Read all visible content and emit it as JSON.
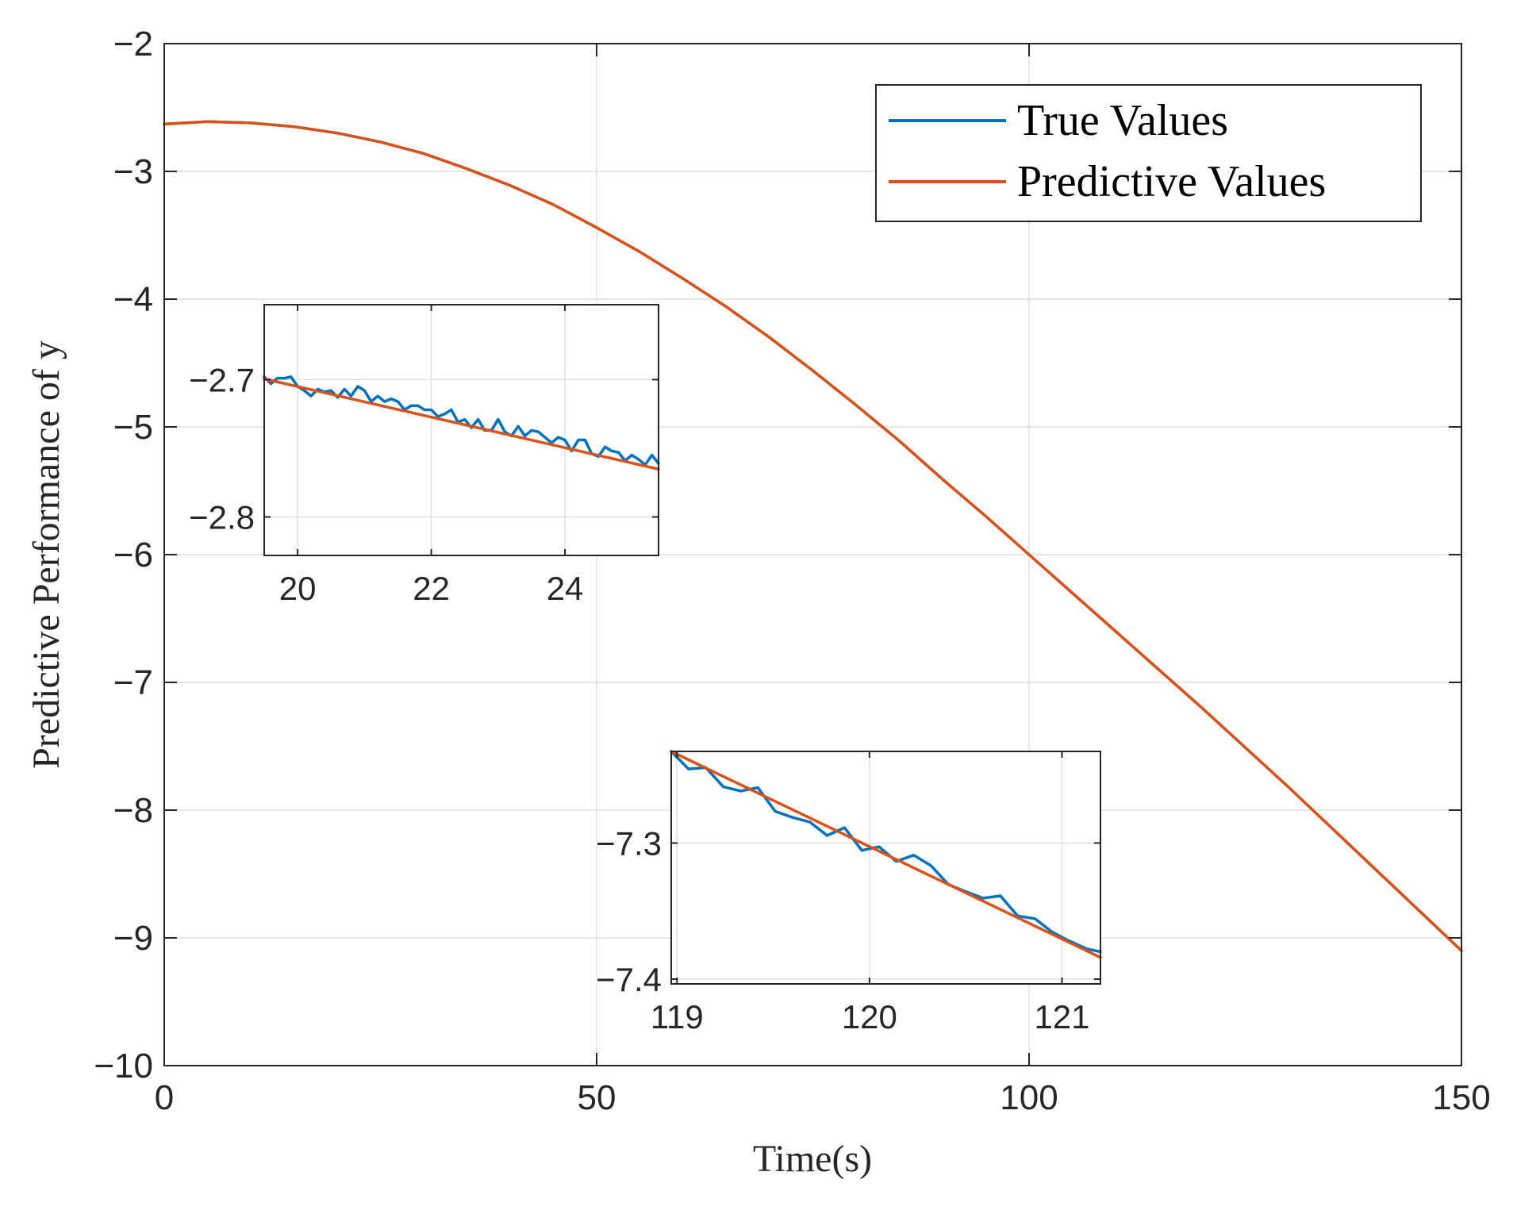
{
  "colors": {
    "true_series": "#0072BD",
    "pred_series": "#D95319",
    "grid": "#dfdfdf",
    "axis": "#262626"
  },
  "chart_data": [
    {
      "type": "line",
      "id": "main",
      "title": "",
      "xlabel": "Time(s)",
      "ylabel": "Predictive Performance of y",
      "xlim": [
        0,
        150
      ],
      "ylim": [
        -10,
        -2
      ],
      "xticks": [
        0,
        50,
        100,
        150
      ],
      "xtick_labels": [
        "0",
        "50",
        "100",
        "150"
      ],
      "yticks": [
        -10,
        -9,
        -8,
        -7,
        -6,
        -5,
        -4,
        -3,
        -2
      ],
      "ytick_labels": [
        "−10",
        "−9",
        "−8",
        "−7",
        "−6",
        "−5",
        "−4",
        "−3",
        "−2"
      ],
      "grid": true,
      "legend_position": "top-right",
      "series": [
        {
          "name": "True Values",
          "x": [
            0,
            5,
            10,
            15,
            20,
            25,
            30,
            35,
            40,
            45,
            50,
            55,
            60,
            65,
            70,
            75,
            80,
            85,
            90,
            95,
            100,
            105,
            110,
            115,
            120,
            125,
            130,
            135,
            140,
            145,
            150
          ],
          "y": [
            -2.63,
            -2.61,
            -2.62,
            -2.65,
            -2.7,
            -2.77,
            -2.86,
            -2.98,
            -3.11,
            -3.26,
            -3.44,
            -3.63,
            -3.84,
            -4.06,
            -4.3,
            -4.56,
            -4.83,
            -5.11,
            -5.41,
            -5.7,
            -6.0,
            -6.3,
            -6.6,
            -6.9,
            -7.2,
            -7.51,
            -7.82,
            -8.14,
            -8.46,
            -8.78,
            -9.1
          ]
        },
        {
          "name": "Predictive Values",
          "x": [
            0,
            5,
            10,
            15,
            20,
            25,
            30,
            35,
            40,
            45,
            50,
            55,
            60,
            65,
            70,
            75,
            80,
            85,
            90,
            95,
            100,
            105,
            110,
            115,
            120,
            125,
            130,
            135,
            140,
            145,
            150
          ],
          "y": [
            -2.63,
            -2.61,
            -2.62,
            -2.65,
            -2.7,
            -2.77,
            -2.86,
            -2.98,
            -3.11,
            -3.26,
            -3.44,
            -3.63,
            -3.84,
            -4.06,
            -4.3,
            -4.56,
            -4.83,
            -5.11,
            -5.41,
            -5.7,
            -6.0,
            -6.3,
            -6.6,
            -6.9,
            -7.2,
            -7.51,
            -7.82,
            -8.14,
            -8.46,
            -8.78,
            -9.1
          ]
        }
      ]
    },
    {
      "type": "line",
      "id": "inset1",
      "xlim": [
        19.5,
        25.4
      ],
      "ylim": [
        -2.828,
        -2.6455
      ],
      "xticks": [
        20,
        22,
        24
      ],
      "xtick_labels": [
        "20",
        "22",
        "24"
      ],
      "yticks": [
        -2.7,
        -2.8
      ],
      "ytick_labels": [
        "−2.7",
        "−2.8"
      ],
      "grid": true,
      "series": [
        {
          "name": "True Values",
          "x": [
            19.5,
            19.6,
            19.7,
            19.8,
            19.9,
            20.0,
            20.1,
            20.2,
            20.3,
            20.4,
            20.5,
            20.6,
            20.7,
            20.8,
            20.9,
            21.0,
            21.1,
            21.2,
            21.3,
            21.4,
            21.5,
            21.6,
            21.7,
            21.8,
            21.9,
            22.0,
            22.1,
            22.2,
            22.3,
            22.4,
            22.5,
            22.6,
            22.7,
            22.8,
            22.9,
            23.0,
            23.1,
            23.2,
            23.3,
            23.4,
            23.5,
            23.6,
            23.7,
            23.8,
            23.9,
            24.0,
            24.1,
            24.2,
            24.3,
            24.4,
            24.5,
            24.6,
            24.7,
            24.8,
            24.9,
            25.0,
            25.1,
            25.2,
            25.3,
            25.4
          ],
          "y": [
            -2.698,
            -2.703,
            -2.699,
            -2.699,
            -2.698,
            -2.705,
            -2.708,
            -2.712,
            -2.707,
            -2.709,
            -2.708,
            -2.713,
            -2.707,
            -2.712,
            -2.705,
            -2.708,
            -2.716,
            -2.712,
            -2.716,
            -2.714,
            -2.716,
            -2.722,
            -2.719,
            -2.719,
            -2.722,
            -2.722,
            -2.727,
            -2.725,
            -2.722,
            -2.731,
            -2.729,
            -2.735,
            -2.729,
            -2.737,
            -2.737,
            -2.729,
            -2.738,
            -2.741,
            -2.734,
            -2.741,
            -2.737,
            -2.738,
            -2.742,
            -2.746,
            -2.742,
            -2.744,
            -2.752,
            -2.744,
            -2.744,
            -2.754,
            -2.756,
            -2.749,
            -2.752,
            -2.753,
            -2.759,
            -2.755,
            -2.758,
            -2.762,
            -2.755,
            -2.761
          ]
        },
        {
          "name": "Predictive Values",
          "x": [
            19.5,
            25.4
          ],
          "y": [
            -2.6995,
            -2.7652
          ]
        }
      ]
    },
    {
      "type": "line",
      "id": "inset2",
      "xlim": [
        118.97,
        121.2
      ],
      "ylim": [
        -7.4035,
        -7.2327
      ],
      "xticks": [
        119,
        120,
        121
      ],
      "xtick_labels": [
        "119",
        "120",
        "121"
      ],
      "yticks": [
        -7.3,
        -7.4
      ],
      "ytick_labels": [
        "−7.3",
        "−7.4"
      ],
      "grid": true,
      "series": [
        {
          "name": "True Values",
          "x": [
            118.97,
            119.06,
            119.15,
            119.24,
            119.33,
            119.42,
            119.51,
            119.6,
            119.69,
            119.78,
            119.87,
            119.96,
            120.05,
            120.14,
            120.23,
            120.32,
            120.41,
            120.5,
            120.59,
            120.68,
            120.77,
            120.86,
            120.95,
            121.04,
            121.13,
            121.2
          ],
          "y": [
            -7.2327,
            -7.2456,
            -7.2446,
            -7.2586,
            -7.2618,
            -7.2593,
            -7.2767,
            -7.2812,
            -7.2846,
            -7.2945,
            -7.2887,
            -7.3054,
            -7.3028,
            -7.3135,
            -7.3089,
            -7.3167,
            -7.3305,
            -7.3357,
            -7.3405,
            -7.3388,
            -7.3536,
            -7.3556,
            -7.3655,
            -7.3721,
            -7.3778,
            -7.3799
          ]
        },
        {
          "name": "Predictive Values",
          "x": [
            118.97,
            121.2
          ],
          "y": [
            -7.2327,
            -7.3841
          ]
        }
      ]
    }
  ]
}
